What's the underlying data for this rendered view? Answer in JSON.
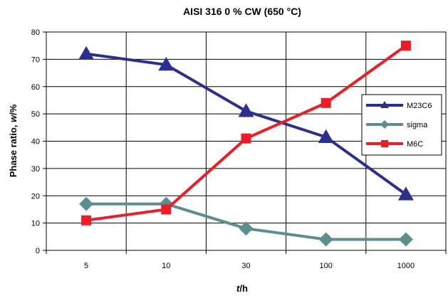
{
  "chart_data": {
    "type": "line",
    "title": "AISI 316  0 % CW  (650 °C)",
    "xlabel_italic": "t",
    "xlabel_rest": "/h",
    "ylabel_plain": "Phase ratio, ",
    "ylabel_italic": "w",
    "ylabel_rest": "/%",
    "categories": [
      "5",
      "10",
      "30",
      "100",
      "1000"
    ],
    "ylim": [
      0,
      80
    ],
    "yticks": [
      "0",
      "10",
      "20",
      "30",
      "40",
      "50",
      "60",
      "70",
      "80"
    ],
    "grid": true,
    "legend_position": "right",
    "series": [
      {
        "name": "M23C6",
        "values": [
          72,
          68,
          51,
          41.5,
          20.5
        ],
        "color": "#2b2f8f",
        "marker": "triangle"
      },
      {
        "name": "sigma",
        "values": [
          17,
          17,
          8,
          4,
          4
        ],
        "color": "#5b8f8f",
        "marker": "diamond"
      },
      {
        "name": "M6C",
        "values": [
          11,
          15,
          41,
          54,
          75
        ],
        "color": "#ee1c24",
        "marker": "square"
      }
    ]
  }
}
